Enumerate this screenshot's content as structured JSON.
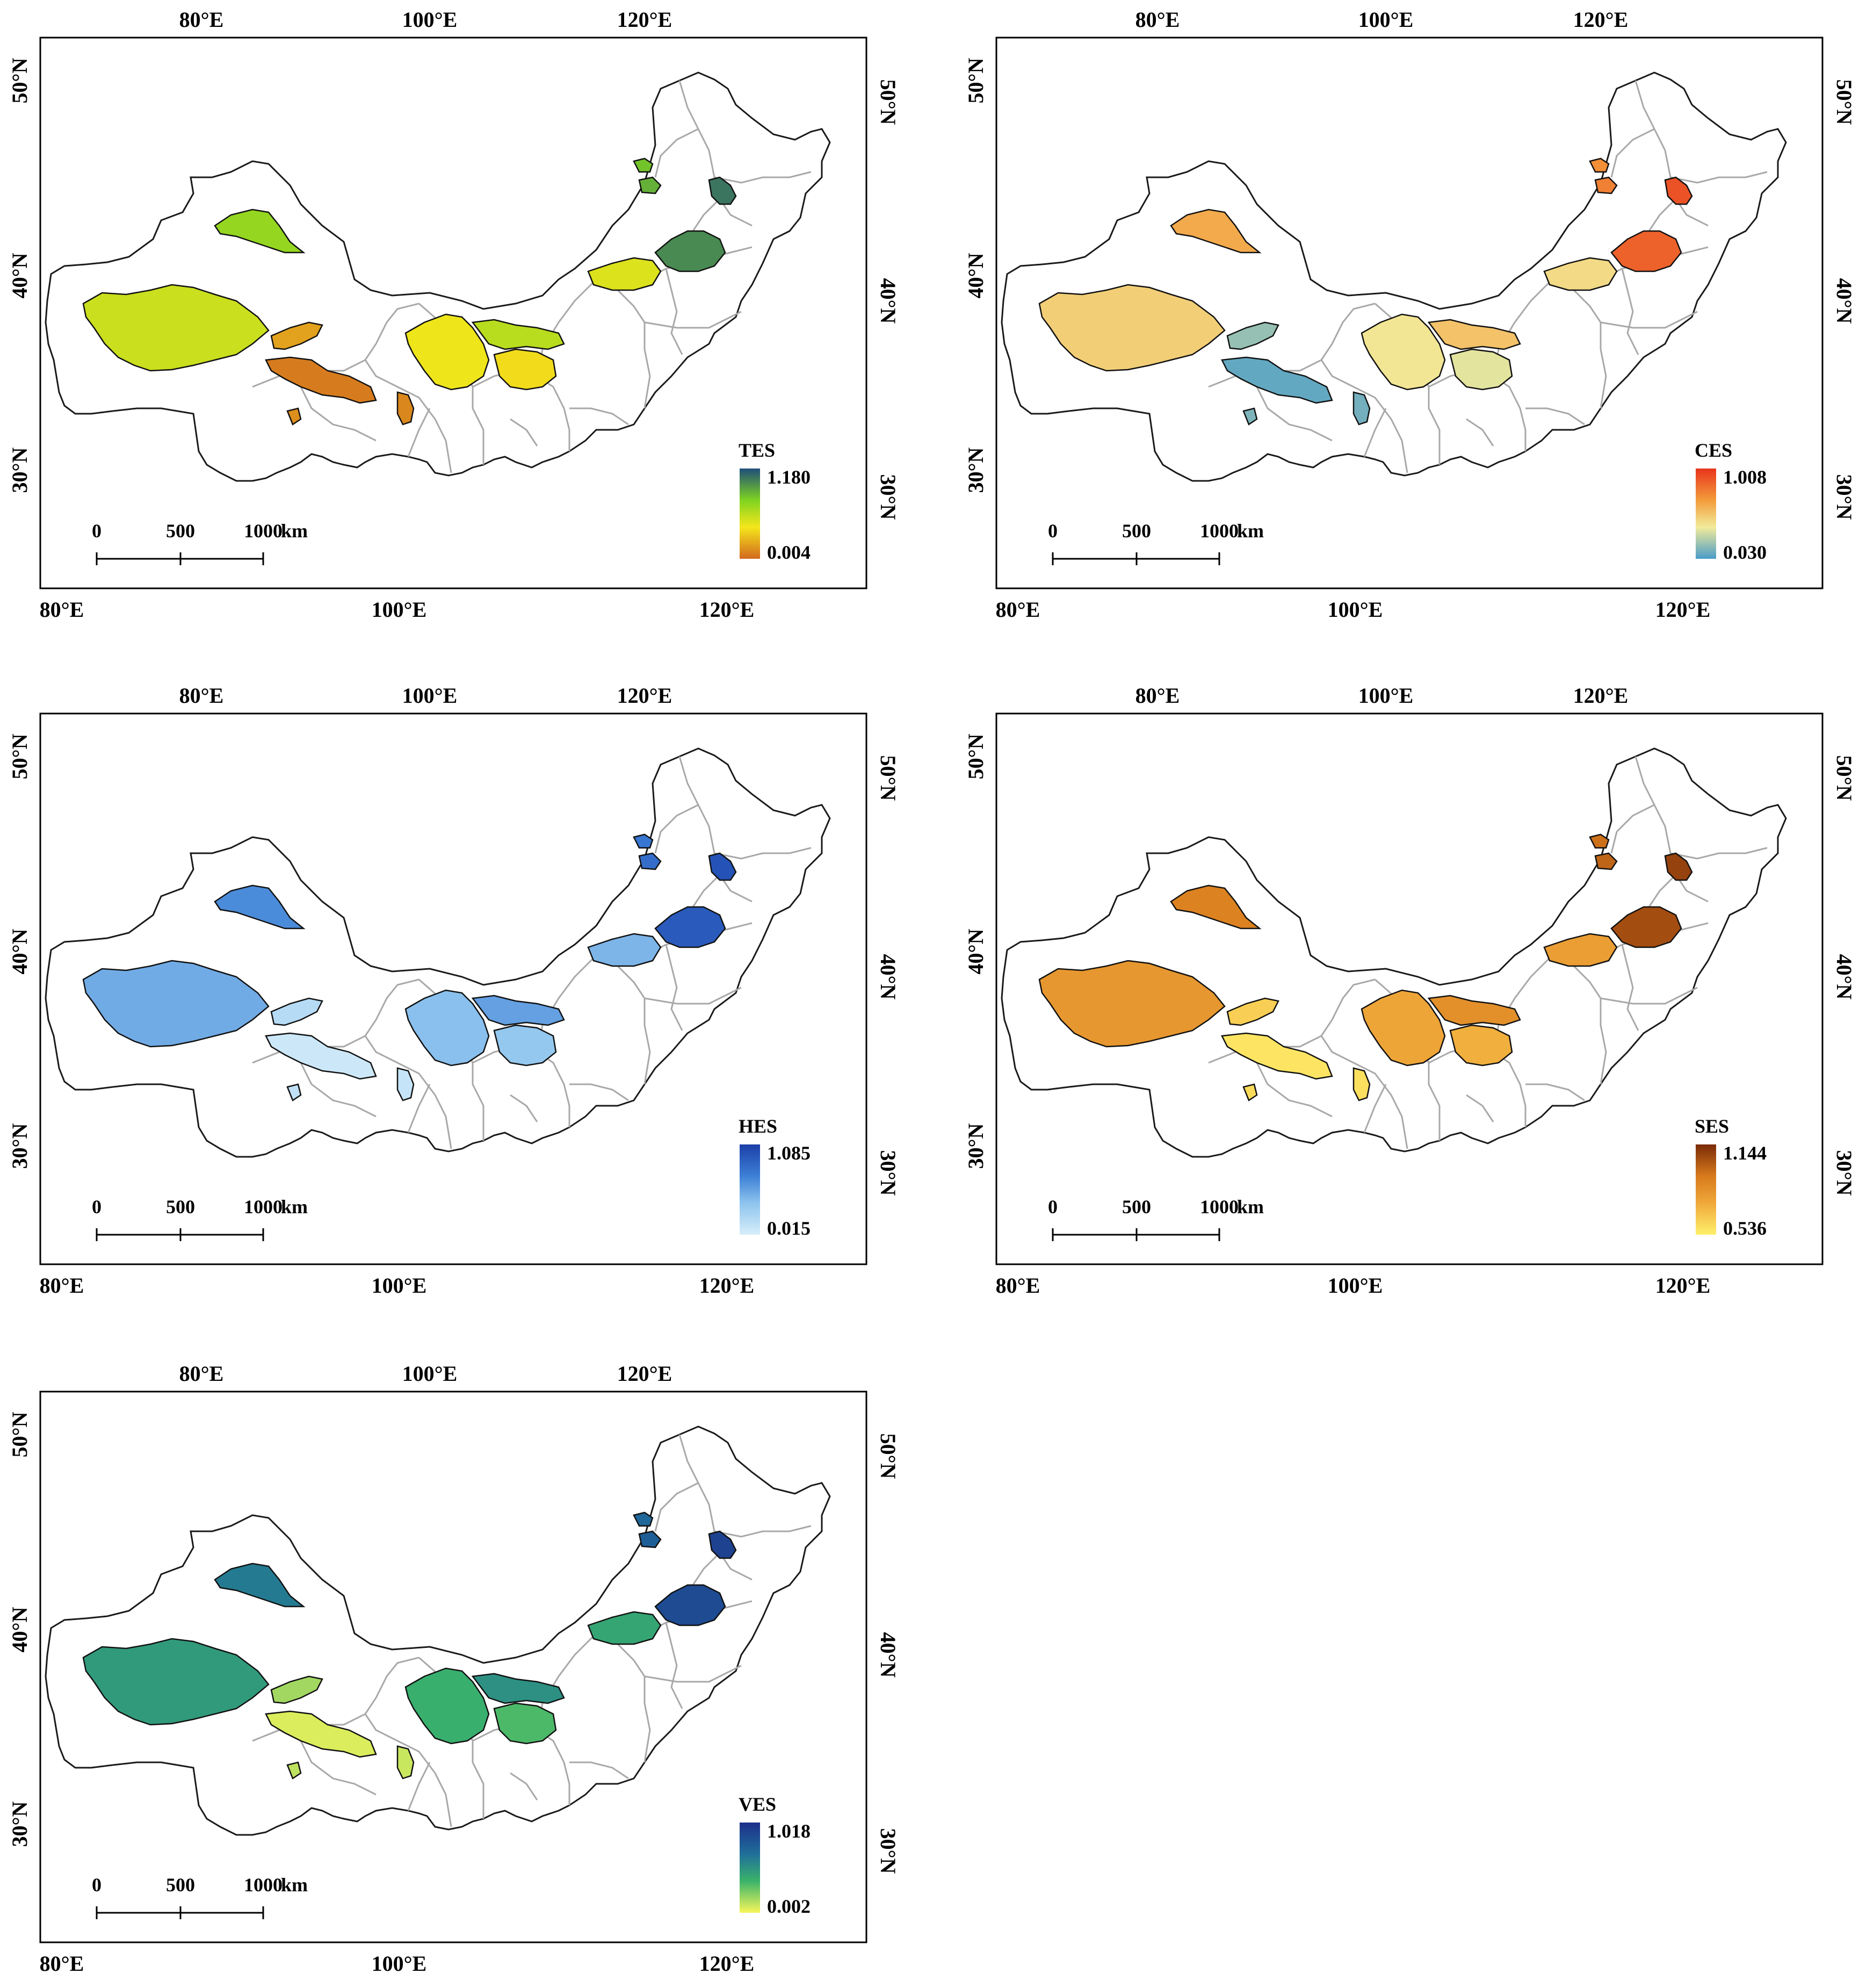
{
  "axes": {
    "top_lon": [
      "80°E",
      "100°E",
      "120°E"
    ],
    "bottom_lon": [
      "80°E",
      "100°E",
      "120°E"
    ],
    "left_lat": [
      "50°N",
      "40°N",
      "30°N"
    ],
    "right_lat": [
      "50°N",
      "40°N",
      "30°N"
    ]
  },
  "scale_bar": {
    "labels": [
      "0",
      "500",
      "1000"
    ],
    "unit": "km"
  },
  "panels": [
    {
      "id": "tes",
      "title": "TES",
      "legend_max": "1.180",
      "legend_min": "0.004",
      "colors": {
        "top": "#1f4e79",
        "mid": "#7ed321",
        "yel": "#f5e61b",
        "bot": "#d2691e"
      }
    },
    {
      "id": "ces",
      "title": "CES",
      "legend_max": "1.008",
      "legend_min": "0.030",
      "colors": {
        "top": "#e8341c",
        "mid": "#f39b3b",
        "yel": "#f2eb9a",
        "bot": "#4a9cc8"
      }
    },
    {
      "id": "hes",
      "title": "HES",
      "legend_max": "1.085",
      "legend_min": "0.015",
      "colors": {
        "top": "#1c3fa8",
        "mid": "#3c7fd6",
        "yel": "#8ec4ee",
        "bot": "#d7eefa"
      }
    },
    {
      "id": "ses",
      "title": "SES",
      "legend_max": "1.144",
      "legend_min": "0.536",
      "colors": {
        "top": "#7a2a08",
        "mid": "#d77a1c",
        "yel": "#f0a83a",
        "bot": "#fff06a"
      }
    },
    {
      "id": "ves",
      "title": "VES",
      "legend_max": "1.018",
      "legend_min": "0.002",
      "colors": {
        "top": "#1d2f8a",
        "mid": "#1f6f9a",
        "yel": "#3bb36a",
        "bot": "#f7f75a"
      }
    }
  ]
}
